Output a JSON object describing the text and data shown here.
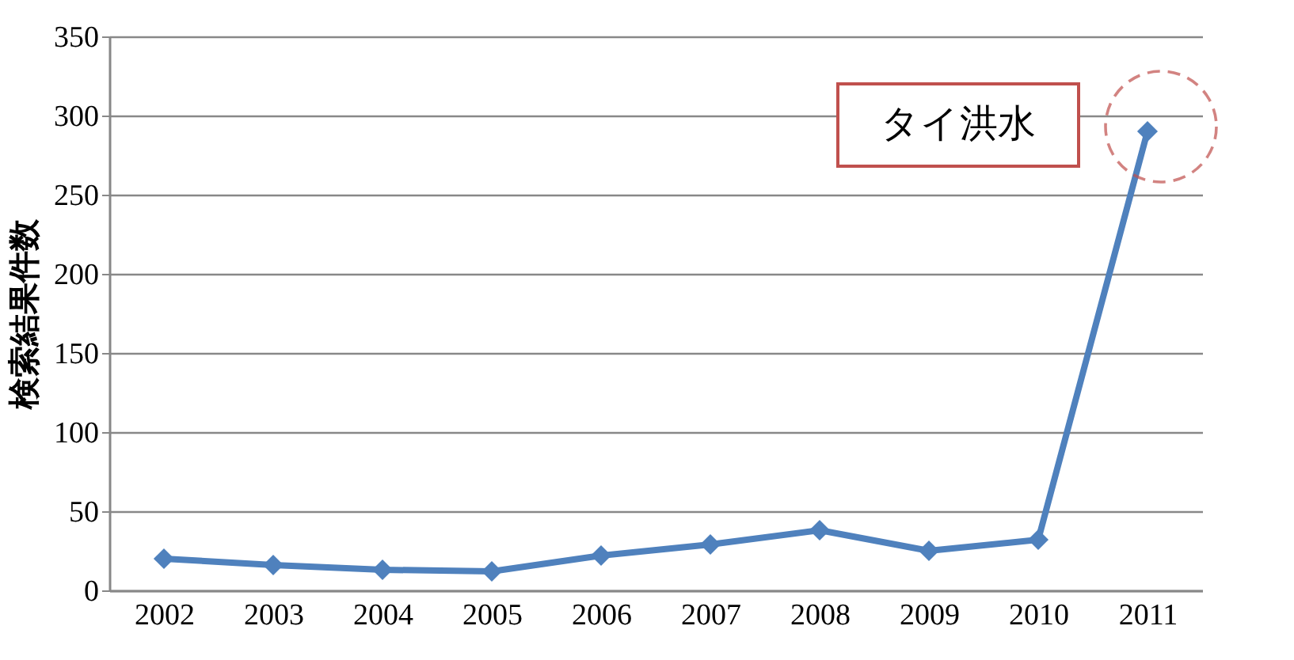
{
  "chart_data": {
    "type": "line",
    "ylabel": "検索結果件数",
    "categories": [
      "2002",
      "2003",
      "2004",
      "2005",
      "2006",
      "2007",
      "2008",
      "2009",
      "2010",
      "2011"
    ],
    "series": [
      {
        "color": "#4f81bd",
        "values": [
          20,
          16,
          13,
          12,
          22,
          29,
          38,
          25,
          32,
          290
        ]
      }
    ],
    "ylim": [
      0,
      350
    ],
    "yticks": [
      0,
      50,
      100,
      150,
      200,
      250,
      300,
      350
    ],
    "grid": "y",
    "marker": "diamond",
    "annotations": [
      "タイ洪水"
    ]
  }
}
